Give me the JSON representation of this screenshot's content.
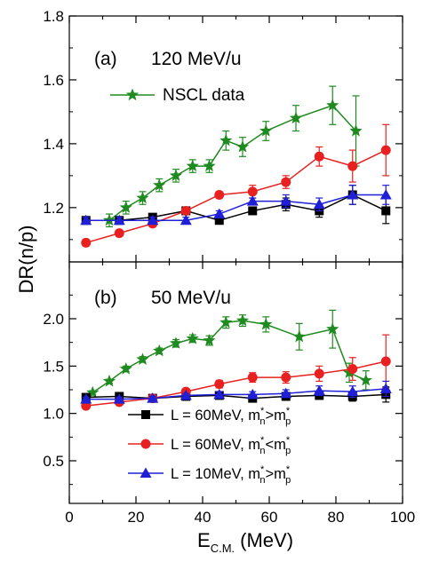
{
  "chart_data": [
    {
      "type": "line",
      "panel_label": "(a)",
      "energy_label": "120 MeV/u",
      "xlim": [
        0,
        100
      ],
      "ylim": [
        1.03,
        1.8
      ],
      "ytick_labels": [
        "1.2",
        "1.4",
        "1.6",
        "1.8"
      ],
      "xticks_labeled": false,
      "series": [
        {
          "name": "NSCL data",
          "color": "#1f8a1f",
          "marker": "star",
          "x": [
            12,
            17,
            22,
            27,
            32,
            37,
            42,
            47,
            52,
            59,
            68,
            79,
            86
          ],
          "y": [
            1.16,
            1.2,
            1.23,
            1.27,
            1.3,
            1.33,
            1.33,
            1.41,
            1.39,
            1.44,
            1.48,
            1.52,
            1.44
          ],
          "err": [
            0.02,
            0.02,
            0.02,
            0.02,
            0.02,
            0.02,
            0.02,
            0.03,
            0.03,
            0.03,
            0.04,
            0.06,
            0.11
          ]
        },
        {
          "color": "#000000",
          "marker": "square",
          "x": [
            5,
            15,
            25,
            35,
            45,
            55,
            65,
            75,
            85,
            95
          ],
          "y": [
            1.16,
            1.16,
            1.17,
            1.19,
            1.16,
            1.19,
            1.21,
            1.19,
            1.24,
            1.19
          ],
          "err": [
            0.01,
            0.01,
            0.01,
            0.01,
            0.01,
            0.01,
            0.02,
            0.02,
            0.03,
            0.04
          ]
        },
        {
          "color": "#e8201f",
          "marker": "circle",
          "x": [
            5,
            15,
            25,
            35,
            45,
            55,
            65,
            75,
            85,
            95
          ],
          "y": [
            1.09,
            1.12,
            1.15,
            1.19,
            1.24,
            1.25,
            1.28,
            1.36,
            1.33,
            1.38
          ],
          "err": [
            0.01,
            0.01,
            0.01,
            0.01,
            0.01,
            0.02,
            0.02,
            0.03,
            0.05,
            0.08
          ]
        },
        {
          "color": "#1f1fd8",
          "marker": "triangle",
          "x": [
            5,
            15,
            25,
            35,
            45,
            55,
            65,
            75,
            85,
            95
          ],
          "y": [
            1.16,
            1.16,
            1.16,
            1.16,
            1.18,
            1.22,
            1.22,
            1.21,
            1.24,
            1.24
          ],
          "err": [
            0.01,
            0.01,
            0.01,
            0.01,
            0.01,
            0.01,
            0.02,
            0.02,
            0.03,
            0.03
          ]
        }
      ]
    },
    {
      "type": "line",
      "panel_label": "(b)",
      "energy_label": "50 MeV/u",
      "xlim": [
        0,
        100
      ],
      "ylim": [
        0.05,
        2.6
      ],
      "ytick_labels": [
        "0.5",
        "1.0",
        "1.5",
        "2.0"
      ],
      "xtick_labels": [
        "0",
        "20",
        "40",
        "60",
        "80",
        "100"
      ],
      "xlabel": "E",
      "xlabel_sub": "C.M.",
      "xlabel_unit": "(MeV)",
      "legend_position": "lower-right",
      "series": [
        {
          "color": "#1f8a1f",
          "marker": "star",
          "x": [
            7,
            12,
            17,
            22,
            27,
            32,
            37,
            42,
            47,
            52,
            59,
            69,
            79,
            84,
            89
          ],
          "y": [
            1.22,
            1.34,
            1.47,
            1.57,
            1.66,
            1.74,
            1.79,
            1.77,
            1.96,
            1.98,
            1.94,
            1.81,
            1.89,
            1.43,
            1.35
          ],
          "err": [
            0.02,
            0.02,
            0.03,
            0.03,
            0.03,
            0.04,
            0.04,
            0.05,
            0.06,
            0.06,
            0.08,
            0.14,
            0.2,
            0.1,
            0.1
          ]
        },
        {
          "name": "L = 60MeV, m*n>m*p",
          "label_main": "L = 60MeV, m",
          "rel": ">",
          "color": "#000000",
          "marker": "square",
          "x": [
            5,
            15,
            25,
            35,
            45,
            55,
            65,
            75,
            85,
            95
          ],
          "y": [
            1.17,
            1.18,
            1.16,
            1.18,
            1.19,
            1.16,
            1.18,
            1.19,
            1.18,
            1.2
          ],
          "err": [
            0.02,
            0.02,
            0.02,
            0.02,
            0.03,
            0.03,
            0.04,
            0.04,
            0.05,
            0.08
          ]
        },
        {
          "name": "L = 60MeV, m*n<m*p",
          "label_main": "L = 60MeV, m",
          "rel": "<",
          "color": "#e8201f",
          "marker": "circle",
          "x": [
            5,
            15,
            25,
            35,
            45,
            55,
            65,
            75,
            85,
            95
          ],
          "y": [
            1.08,
            1.12,
            1.16,
            1.23,
            1.31,
            1.38,
            1.38,
            1.42,
            1.47,
            1.55
          ],
          "err": [
            0.02,
            0.02,
            0.02,
            0.03,
            0.04,
            0.05,
            0.06,
            0.08,
            0.12,
            0.28
          ]
        },
        {
          "name": "L = 10MeV, m*n>m*p",
          "label_main": "L = 10MeV, m",
          "rel": ">",
          "color": "#1f1fd8",
          "marker": "triangle",
          "x": [
            5,
            15,
            25,
            35,
            45,
            55,
            65,
            75,
            85,
            95
          ],
          "y": [
            1.15,
            1.15,
            1.16,
            1.19,
            1.2,
            1.2,
            1.21,
            1.24,
            1.23,
            1.26
          ],
          "err": [
            0.02,
            0.02,
            0.02,
            0.02,
            0.03,
            0.03,
            0.04,
            0.05,
            0.06,
            0.08
          ]
        }
      ]
    }
  ],
  "ylabel": "DR(n/p)",
  "sup_star": "*",
  "sub_n": "n",
  "sub_p": "p"
}
